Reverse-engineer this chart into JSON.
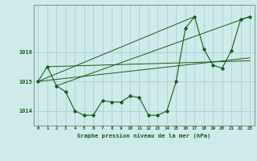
{
  "title": "Graphe pression niveau de la mer (hPa)",
  "background_color": "#ceeaea",
  "plot_bg_color": "#ceeaea",
  "line_color": "#1a5c1a",
  "grid_color": "#aad0d0",
  "x_ticks": [
    0,
    1,
    2,
    3,
    4,
    5,
    6,
    7,
    8,
    9,
    10,
    11,
    12,
    13,
    14,
    15,
    16,
    17,
    18,
    19,
    20,
    21,
    22,
    23
  ],
  "y_ticks": [
    1014,
    1015,
    1016
  ],
  "xlim": [
    -0.5,
    23.5
  ],
  "ylim": [
    1013.5,
    1017.6
  ],
  "main_series": [
    0,
    1,
    2,
    3,
    4,
    5,
    6,
    7,
    8,
    9,
    10,
    11,
    12,
    13,
    14,
    15,
    16,
    17,
    18,
    19,
    20,
    21,
    22,
    23
  ],
  "main_values": [
    1015.0,
    1015.5,
    1014.85,
    1014.65,
    1014.0,
    1013.85,
    1013.85,
    1014.35,
    1014.3,
    1014.3,
    1014.5,
    1014.45,
    1013.85,
    1013.85,
    1014.0,
    1015.0,
    1016.8,
    1017.2,
    1016.1,
    1015.55,
    1015.45,
    1016.05,
    1017.1,
    1017.2
  ],
  "line1_x": [
    0,
    23
  ],
  "line1_y": [
    1015.0,
    1015.8
  ],
  "line2_x": [
    1,
    23
  ],
  "line2_y": [
    1015.5,
    1015.7
  ],
  "line3_x": [
    2,
    23
  ],
  "line3_y": [
    1014.85,
    1017.2
  ],
  "line4_x": [
    0,
    17
  ],
  "line4_y": [
    1015.0,
    1017.2
  ]
}
